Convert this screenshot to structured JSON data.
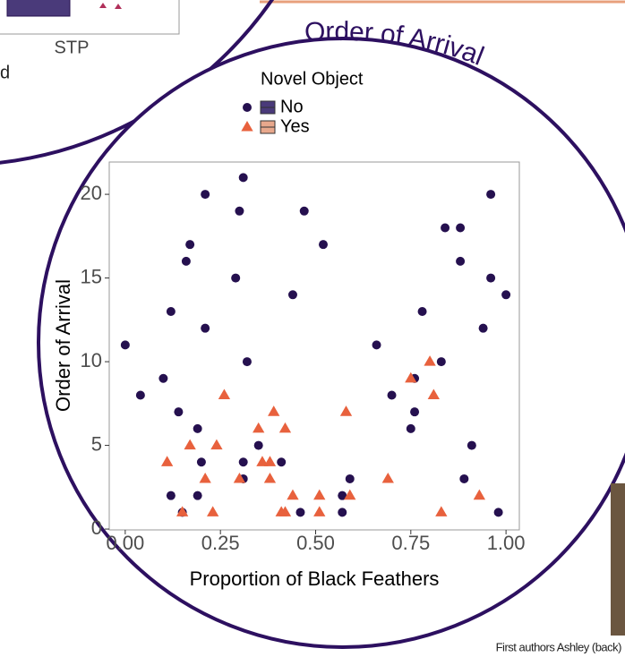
{
  "poster": {
    "heading": "Order of Arrival",
    "inset_label": "STP",
    "fragment": "d",
    "caption": "First authors Ashley (back)"
  },
  "chart_data": {
    "type": "scatter",
    "x_label": "Proportion of Black Feathers",
    "y_label": "Order of Arrival",
    "legend_title": "Novel Object",
    "xlim": [
      -0.042,
      1.035
    ],
    "ylim": [
      -0.05,
      21.93
    ],
    "xticks": [
      {
        "value": 0,
        "label": "0.00"
      },
      {
        "value": 0.25,
        "label": "0.25"
      },
      {
        "value": 0.5,
        "label": "0.50"
      },
      {
        "value": 0.75,
        "label": "0.75"
      },
      {
        "value": 1,
        "label": "1.00"
      }
    ],
    "yticks": [
      0,
      5,
      10,
      15,
      20
    ],
    "grid": false,
    "series": [
      {
        "name": "No",
        "color": "#25104f",
        "marker": "circle",
        "x": [
          0.0,
          0.04,
          0.1,
          0.12,
          0.12,
          0.14,
          0.15,
          0.16,
          0.17,
          0.19,
          0.19,
          0.21,
          0.21,
          0.2,
          0.29,
          0.3,
          0.31,
          0.31,
          0.31,
          0.32,
          0.35,
          0.44,
          0.41,
          0.46,
          0.47,
          0.52,
          0.57,
          0.57,
          0.59,
          0.66,
          0.7,
          0.75,
          0.76,
          0.76,
          0.78,
          0.83,
          0.84,
          0.88,
          0.88,
          0.89,
          0.91,
          0.94,
          0.96,
          0.96,
          0.98,
          1.0
        ],
        "values": [
          11,
          8,
          9,
          13,
          2,
          7,
          1,
          16,
          17,
          6,
          2,
          20,
          12,
          4,
          15,
          19,
          21,
          4,
          3,
          10,
          5,
          14,
          4,
          1,
          19,
          17,
          2,
          1,
          3,
          11,
          8,
          6,
          9,
          7,
          13,
          10,
          18,
          18,
          16,
          3,
          5,
          12,
          15,
          20,
          1,
          14
        ]
      },
      {
        "name": "Yes",
        "color": "#e8613d",
        "marker": "triangle",
        "x": [
          0.11,
          0.15,
          0.17,
          0.21,
          0.23,
          0.24,
          0.26,
          0.3,
          0.35,
          0.36,
          0.38,
          0.39,
          0.38,
          0.41,
          0.42,
          0.42,
          0.44,
          0.51,
          0.51,
          0.58,
          0.59,
          0.69,
          0.75,
          0.8,
          0.81,
          0.83,
          0.93
        ],
        "values": [
          4,
          1,
          5,
          3,
          1,
          5,
          8,
          3,
          6,
          4,
          4,
          7,
          3,
          1,
          1,
          6,
          2,
          2,
          1,
          7,
          2,
          3,
          9,
          10,
          8,
          1,
          2
        ]
      }
    ]
  }
}
